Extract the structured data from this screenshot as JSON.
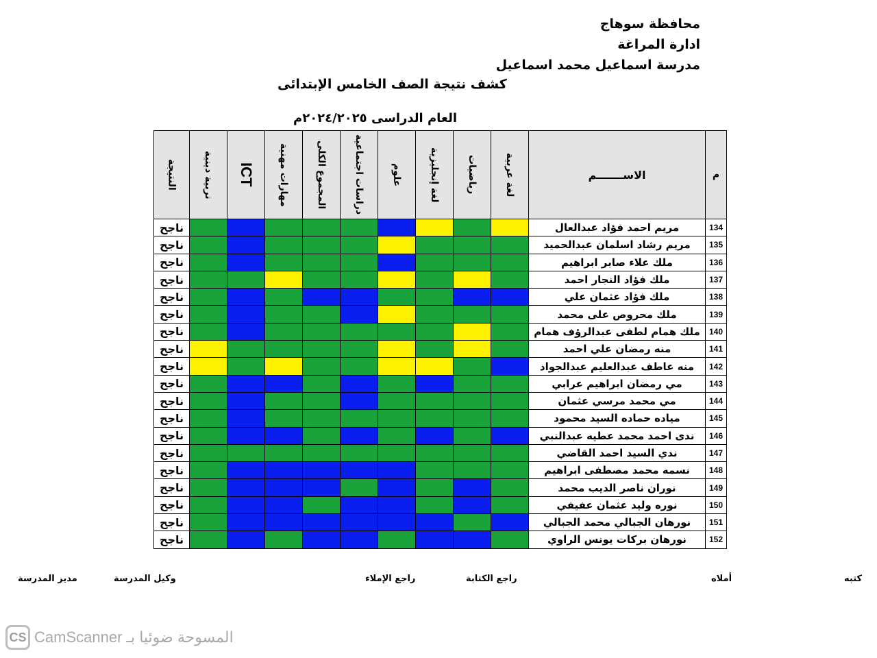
{
  "header": {
    "governorate": "محافظة سوهاج",
    "administration": "ادارة المراغة",
    "school": "مدرسة اسماعيل محمد اسماعيل",
    "title": "كشف نتيجة الصف الخامس الإبتدائى",
    "year": "العام الدراسى ٢٠٢٤/٢٠٢٥م"
  },
  "table": {
    "num_header": "م",
    "name_header": "الاســـــــم",
    "subjects": [
      "لغة عربية",
      "رياضيات",
      "لغة إنجليزية",
      "علوم",
      "دراسات اجتماعية",
      "المجموع الكلى",
      "مهارات مهنية",
      "ICT",
      "تربية دينية",
      "النتيجة"
    ],
    "colors": {
      "G": "#1aa33a",
      "B": "#0b1ef0",
      "Y": "#fff200"
    },
    "rows": [
      {
        "num": "134",
        "name": "مريم احمد فؤاد عبدالعال",
        "grades": [
          "Y",
          "G",
          "Y",
          "B",
          "G",
          "G",
          "G",
          "B",
          "G"
        ],
        "result": "ناجح"
      },
      {
        "num": "135",
        "name": "مريم رشاد اسلمان عبدالحميد",
        "grades": [
          "G",
          "G",
          "G",
          "Y",
          "G",
          "G",
          "G",
          "B",
          "G"
        ],
        "result": "ناجح"
      },
      {
        "num": "136",
        "name": "ملك علاء صابر ابراهيم",
        "grades": [
          "G",
          "G",
          "G",
          "B",
          "G",
          "G",
          "G",
          "B",
          "G"
        ],
        "result": "ناجح"
      },
      {
        "num": "137",
        "name": "ملك فؤاد النجار احمد",
        "grades": [
          "G",
          "Y",
          "G",
          "Y",
          "G",
          "G",
          "Y",
          "G",
          "G"
        ],
        "result": "ناجح"
      },
      {
        "num": "138",
        "name": "ملك فؤاد عثمان علي",
        "grades": [
          "B",
          "B",
          "G",
          "G",
          "B",
          "B",
          "G",
          "B",
          "G"
        ],
        "result": "ناجح"
      },
      {
        "num": "139",
        "name": "ملك محروص على محمد",
        "grades": [
          "G",
          "G",
          "G",
          "Y",
          "B",
          "G",
          "G",
          "B",
          "G"
        ],
        "result": "ناجح"
      },
      {
        "num": "140",
        "name": "ملك همام لطفى عبدالرؤف همام",
        "grades": [
          "G",
          "Y",
          "G",
          "G",
          "G",
          "G",
          "G",
          "B",
          "G"
        ],
        "result": "ناجح"
      },
      {
        "num": "141",
        "name": "منه رمضان علي احمد",
        "grades": [
          "G",
          "Y",
          "G",
          "Y",
          "G",
          "G",
          "G",
          "G",
          "Y"
        ],
        "result": "ناجح"
      },
      {
        "num": "142",
        "name": "منه عاطف عبدالعليم عبدالجواد",
        "grades": [
          "B",
          "G",
          "Y",
          "Y",
          "G",
          "G",
          "Y",
          "G",
          "Y"
        ],
        "result": "ناجح"
      },
      {
        "num": "143",
        "name": "مي رمضان ابراهيم عرابي",
        "grades": [
          "G",
          "G",
          "B",
          "G",
          "B",
          "G",
          "B",
          "B",
          "G"
        ],
        "result": "ناجح"
      },
      {
        "num": "144",
        "name": "مي محمد مرسي عثمان",
        "grades": [
          "G",
          "G",
          "G",
          "G",
          "B",
          "G",
          "G",
          "B",
          "G"
        ],
        "result": "ناجح"
      },
      {
        "num": "145",
        "name": "مياده حماده السيد محمود",
        "grades": [
          "G",
          "G",
          "G",
          "G",
          "G",
          "G",
          "G",
          "B",
          "G"
        ],
        "result": "ناجح"
      },
      {
        "num": "146",
        "name": "ندى احمد محمد عطيه عبدالنبي",
        "grades": [
          "B",
          "G",
          "B",
          "G",
          "B",
          "G",
          "B",
          "B",
          "G"
        ],
        "result": "ناجح"
      },
      {
        "num": "147",
        "name": "ندي السيد احمد القاضي",
        "grades": [
          "G",
          "G",
          "G",
          "G",
          "G",
          "G",
          "G",
          "G",
          "G"
        ],
        "result": "ناجح"
      },
      {
        "num": "148",
        "name": "نسمه محمد مصطفى ابراهيم",
        "grades": [
          "G",
          "G",
          "G",
          "B",
          "B",
          "B",
          "B",
          "B",
          "G"
        ],
        "result": "ناجح"
      },
      {
        "num": "149",
        "name": "نوران ناصر الديب محمد",
        "grades": [
          "G",
          "B",
          "G",
          "B",
          "G",
          "B",
          "B",
          "B",
          "G"
        ],
        "result": "ناجح"
      },
      {
        "num": "150",
        "name": "نوره وليد عثمان عفيفي",
        "grades": [
          "G",
          "B",
          "G",
          "B",
          "B",
          "G",
          "B",
          "B",
          "G"
        ],
        "result": "ناجح"
      },
      {
        "num": "151",
        "name": "نورهان الجبالي محمد الجبالي",
        "grades": [
          "B",
          "G",
          "B",
          "B",
          "B",
          "B",
          "B",
          "B",
          "G"
        ],
        "result": "ناجح"
      },
      {
        "num": "152",
        "name": "نورهان بركات يونس الراوي",
        "grades": [
          "G",
          "B",
          "B",
          "G",
          "B",
          "B",
          "G",
          "B",
          "G"
        ],
        "result": "ناجح"
      }
    ]
  },
  "footer": {
    "katabah": "كتبه",
    "amlah": "أملاه",
    "raje_kitabah": "راجع الكتابة",
    "raje_imla": "راجع الإملاء",
    "wakeel": "وكيل المدرسة",
    "mudeer": "مدير المدرسة"
  },
  "watermark": {
    "logo": "CS",
    "text": "CamScanner المسوحة ضوئيا بـ"
  }
}
